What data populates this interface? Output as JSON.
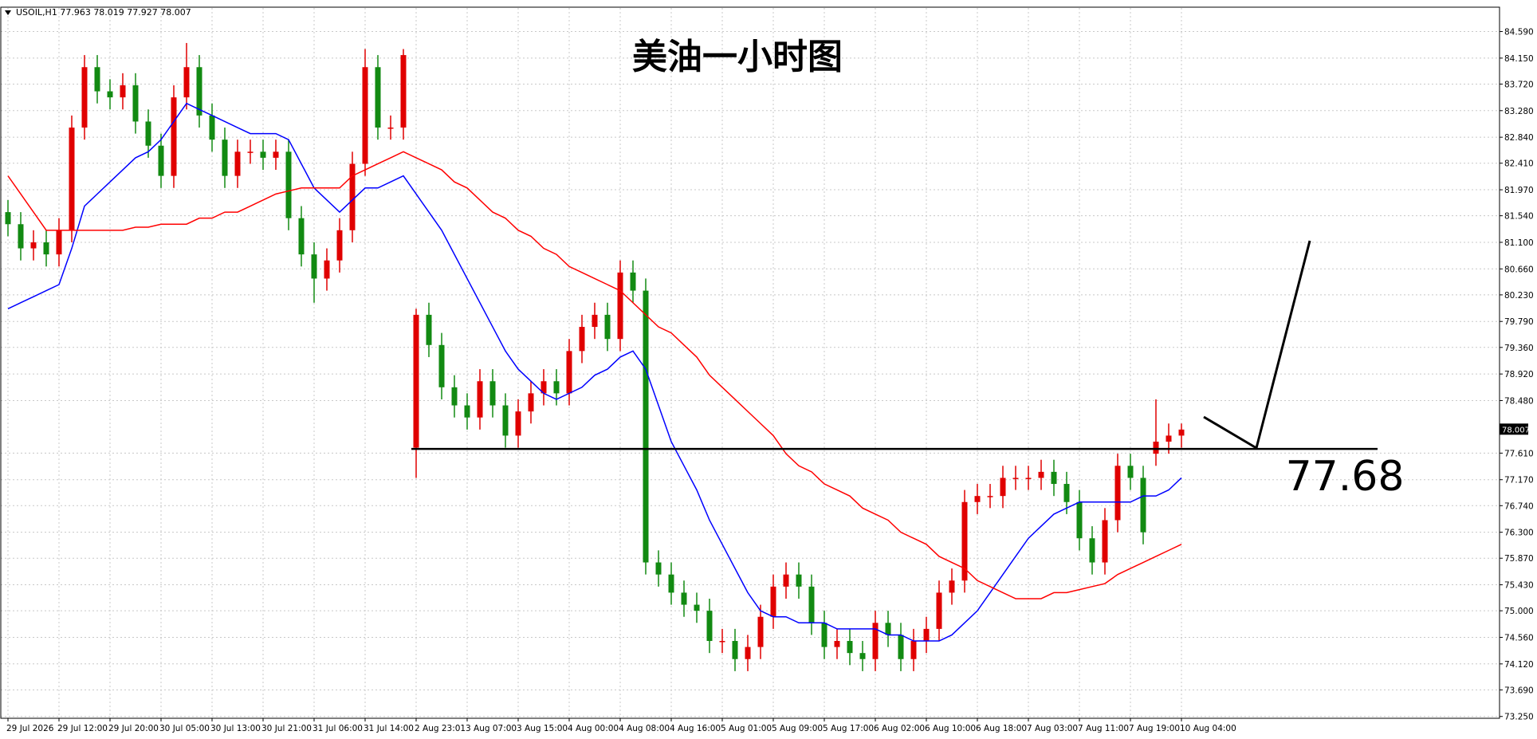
{
  "chart_data": {
    "type": "candlestick",
    "header": "USOIL,H1 77.963 78.019 77.927 78.007",
    "title": "美油一小时图",
    "level": 77.68,
    "last_price": 78.007,
    "up_color": "#e00000",
    "down_color": "#128a12",
    "grid": true,
    "ylim": [
      73.22,
      84.98
    ],
    "yticks": [
      {
        "value": 84.59,
        "label": "84.590"
      },
      {
        "value": 84.15,
        "label": "84.150"
      },
      {
        "value": 83.72,
        "label": "83.720"
      },
      {
        "value": 83.28,
        "label": "83.280"
      },
      {
        "value": 82.84,
        "label": "82.840"
      },
      {
        "value": 82.41,
        "label": "82.410"
      },
      {
        "value": 81.97,
        "label": "81.970"
      },
      {
        "value": 81.54,
        "label": "81.540"
      },
      {
        "value": 81.1,
        "label": "81.100"
      },
      {
        "value": 80.66,
        "label": "80.660"
      },
      {
        "value": 80.23,
        "label": "80.230"
      },
      {
        "value": 79.79,
        "label": "79.790"
      },
      {
        "value": 79.36,
        "label": "79.360"
      },
      {
        "value": 78.92,
        "label": "78.920"
      },
      {
        "value": 78.48,
        "label": "78.480"
      },
      {
        "value": 77.61,
        "label": "77.610"
      },
      {
        "value": 77.17,
        "label": "77.170"
      },
      {
        "value": 76.74,
        "label": "76.740"
      },
      {
        "value": 76.3,
        "label": "76.300"
      },
      {
        "value": 75.87,
        "label": "75.870"
      },
      {
        "value": 75.43,
        "label": "75.430"
      },
      {
        "value": 75,
        "label": "75.000"
      },
      {
        "value": 74.56,
        "label": "74.560"
      },
      {
        "value": 74.12,
        "label": "74.120"
      },
      {
        "value": 73.69,
        "label": "73.690"
      },
      {
        "value": 73.25,
        "label": "73.250"
      }
    ],
    "categories": [
      "29 Jul 2026",
      null,
      null,
      null,
      "29 Jul 12:00",
      null,
      null,
      null,
      "29 Jul 20:00",
      null,
      null,
      null,
      "30 Jul 05:00",
      null,
      null,
      null,
      "30 Jul 13:00",
      null,
      null,
      null,
      "30 Jul 21:00",
      null,
      null,
      null,
      "31 Jul 06:00",
      null,
      null,
      null,
      "31 Jul 14:00",
      null,
      null,
      null,
      "2 Aug 23:01",
      null,
      null,
      null,
      "3 Aug 07:00",
      null,
      null,
      null,
      "3 Aug 15:00",
      null,
      null,
      null,
      "4 Aug 00:00",
      null,
      null,
      null,
      "4 Aug 08:00",
      null,
      null,
      null,
      "4 Aug 16:00",
      null,
      null,
      null,
      "5 Aug 01:00",
      null,
      null,
      null,
      "5 Aug 09:00",
      null,
      null,
      null,
      "5 Aug 17:00",
      null,
      null,
      null,
      "6 Aug 02:00",
      null,
      null,
      null,
      "6 Aug 10:00",
      null,
      null,
      null,
      "6 Aug 18:00",
      null,
      null,
      null,
      "7 Aug 03:00",
      null,
      null,
      null,
      "7 Aug 11:00",
      null,
      null,
      null,
      "7 Aug 19:00",
      null,
      null,
      null,
      "10 Aug 04:00"
    ],
    "open": [
      81.6,
      81.4,
      81.0,
      81.1,
      80.9,
      81.3,
      83.0,
      84.0,
      83.6,
      83.5,
      83.7,
      83.1,
      82.7,
      82.2,
      83.5,
      84.0,
      83.2,
      82.8,
      82.2,
      82.6,
      82.6,
      82.5,
      82.6,
      81.5,
      80.9,
      80.5,
      80.8,
      81.3,
      82.4,
      84.0,
      83.0,
      83.0,
      77.7,
      79.9,
      79.4,
      78.7,
      78.4,
      78.2,
      78.8,
      78.4,
      77.9,
      78.3,
      78.6,
      78.8,
      78.6,
      79.3,
      79.7,
      79.9,
      79.5,
      80.6,
      80.3,
      75.8,
      75.6,
      75.3,
      75.1,
      75.0,
      74.5,
      74.5,
      74.2,
      74.4,
      74.9,
      75.4,
      75.6,
      75.4,
      74.8,
      74.4,
      74.5,
      74.3,
      74.2,
      74.8,
      74.6,
      74.2,
      74.5,
      74.7,
      75.3,
      75.5,
      76.8,
      76.9,
      76.9,
      77.2,
      77.2,
      77.2,
      77.3,
      77.1,
      76.8,
      76.2,
      75.8,
      76.5,
      77.4,
      77.2,
      77.6,
      77.8,
      77.9
    ],
    "high": [
      81.8,
      81.6,
      81.3,
      81.3,
      81.5,
      83.2,
      84.2,
      84.2,
      83.8,
      83.9,
      83.9,
      83.3,
      82.9,
      83.7,
      84.4,
      84.2,
      83.4,
      83.0,
      82.8,
      82.8,
      82.8,
      82.8,
      82.8,
      81.7,
      81.1,
      81.0,
      81.5,
      82.6,
      84.3,
      84.2,
      83.2,
      84.3,
      80.0,
      80.1,
      79.6,
      78.9,
      78.6,
      79.0,
      79.0,
      78.6,
      78.5,
      78.8,
      79.0,
      79.0,
      79.5,
      79.9,
      80.1,
      80.1,
      80.8,
      80.8,
      80.5,
      76.0,
      75.8,
      75.5,
      75.3,
      75.2,
      74.7,
      74.7,
      74.6,
      75.1,
      75.6,
      75.8,
      75.8,
      75.6,
      75.0,
      74.7,
      74.7,
      74.5,
      75.0,
      75.0,
      74.8,
      74.7,
      74.9,
      75.5,
      75.7,
      77.0,
      77.1,
      77.1,
      77.4,
      77.4,
      77.4,
      77.5,
      77.5,
      77.3,
      77.0,
      76.4,
      76.7,
      77.6,
      77.6,
      77.4,
      78.5,
      78.1,
      78.1
    ],
    "low": [
      81.2,
      80.8,
      80.8,
      80.7,
      80.7,
      81.1,
      82.8,
      83.4,
      83.3,
      83.3,
      82.9,
      82.5,
      82.0,
      82.0,
      83.3,
      83.0,
      82.6,
      82.0,
      82.0,
      82.4,
      82.3,
      82.3,
      81.3,
      80.7,
      80.1,
      80.3,
      80.6,
      81.1,
      82.2,
      82.8,
      82.8,
      82.8,
      77.2,
      79.2,
      78.5,
      78.2,
      78.0,
      78.0,
      78.2,
      77.7,
      77.7,
      78.1,
      78.4,
      78.4,
      78.4,
      79.1,
      79.5,
      79.3,
      79.3,
      80.1,
      75.6,
      75.4,
      75.1,
      74.9,
      74.8,
      74.3,
      74.3,
      74.0,
      74.0,
      74.2,
      74.7,
      75.2,
      75.2,
      74.6,
      74.2,
      74.2,
      74.1,
      74.0,
      74.0,
      74.4,
      74.0,
      74.0,
      74.3,
      74.5,
      75.1,
      75.3,
      76.6,
      76.7,
      76.7,
      77.0,
      77.0,
      77.0,
      76.9,
      76.6,
      76.0,
      75.6,
      75.6,
      76.3,
      77.0,
      76.1,
      77.4,
      77.6,
      77.7
    ],
    "close": [
      81.4,
      81.0,
      81.1,
      80.9,
      81.3,
      83.0,
      84.0,
      83.6,
      83.5,
      83.7,
      83.1,
      82.7,
      82.2,
      83.5,
      84.0,
      83.2,
      82.8,
      82.2,
      82.6,
      82.6,
      82.5,
      82.6,
      81.5,
      80.9,
      80.5,
      80.8,
      81.3,
      82.4,
      84.0,
      83.0,
      83.0,
      84.2,
      79.9,
      79.4,
      78.7,
      78.4,
      78.2,
      78.8,
      78.4,
      77.9,
      78.3,
      78.6,
      78.8,
      78.6,
      79.3,
      79.7,
      79.9,
      79.5,
      80.6,
      80.3,
      75.8,
      75.6,
      75.3,
      75.1,
      75.0,
      74.5,
      74.5,
      74.2,
      74.4,
      74.9,
      75.4,
      75.6,
      75.4,
      74.8,
      74.4,
      74.5,
      74.3,
      74.2,
      74.8,
      74.6,
      74.2,
      74.5,
      74.7,
      75.3,
      75.5,
      76.8,
      76.9,
      76.9,
      77.2,
      77.2,
      77.2,
      77.3,
      77.1,
      76.8,
      76.2,
      75.8,
      76.5,
      77.4,
      77.2,
      76.3,
      77.8,
      77.9,
      78.0
    ],
    "ma_lines": [
      {
        "color": "#0000ff",
        "values": [
          80.0,
          80.1,
          80.2,
          80.3,
          80.4,
          81.0,
          81.7,
          81.9,
          82.1,
          82.3,
          82.5,
          82.6,
          82.8,
          83.1,
          83.4,
          83.3,
          83.2,
          83.1,
          83.0,
          82.9,
          82.9,
          82.9,
          82.8,
          82.4,
          82.0,
          81.8,
          81.6,
          81.8,
          82.0,
          82.0,
          82.1,
          82.2,
          81.9,
          81.6,
          81.3,
          80.9,
          80.5,
          80.1,
          79.7,
          79.3,
          79.0,
          78.8,
          78.6,
          78.5,
          78.6,
          78.7,
          78.9,
          79.0,
          79.2,
          79.3,
          79.0,
          78.4,
          77.8,
          77.4,
          77.0,
          76.5,
          76.1,
          75.7,
          75.3,
          75.0,
          74.9,
          74.9,
          74.8,
          74.8,
          74.8,
          74.7,
          74.7,
          74.7,
          74.7,
          74.6,
          74.6,
          74.5,
          74.5,
          74.5,
          74.6,
          74.8,
          75.0,
          75.3,
          75.6,
          75.9,
          76.2,
          76.4,
          76.6,
          76.7,
          76.8,
          76.8,
          76.8,
          76.8,
          76.8,
          76.9,
          76.9,
          77.0,
          77.2
        ]
      },
      {
        "color": "#ff0000",
        "values": [
          82.2,
          81.9,
          81.6,
          81.3,
          81.3,
          81.3,
          81.3,
          81.3,
          81.3,
          81.3,
          81.35,
          81.35,
          81.4,
          81.4,
          81.4,
          81.5,
          81.5,
          81.6,
          81.6,
          81.7,
          81.8,
          81.9,
          81.95,
          82.0,
          82.0,
          82.0,
          82.0,
          82.2,
          82.3,
          82.4,
          82.5,
          82.6,
          82.5,
          82.4,
          82.3,
          82.1,
          82.0,
          81.8,
          81.6,
          81.5,
          81.3,
          81.2,
          81.0,
          80.9,
          80.7,
          80.6,
          80.5,
          80.4,
          80.3,
          80.1,
          79.9,
          79.7,
          79.6,
          79.4,
          79.2,
          78.9,
          78.7,
          78.5,
          78.3,
          78.1,
          77.9,
          77.6,
          77.4,
          77.3,
          77.1,
          77.0,
          76.9,
          76.7,
          76.6,
          76.5,
          76.3,
          76.2,
          76.1,
          75.9,
          75.8,
          75.7,
          75.5,
          75.4,
          75.3,
          75.2,
          75.2,
          75.2,
          75.3,
          75.3,
          75.35,
          75.4,
          75.45,
          75.6,
          75.7,
          75.8,
          75.9,
          76.0,
          76.1
        ]
      }
    ]
  }
}
